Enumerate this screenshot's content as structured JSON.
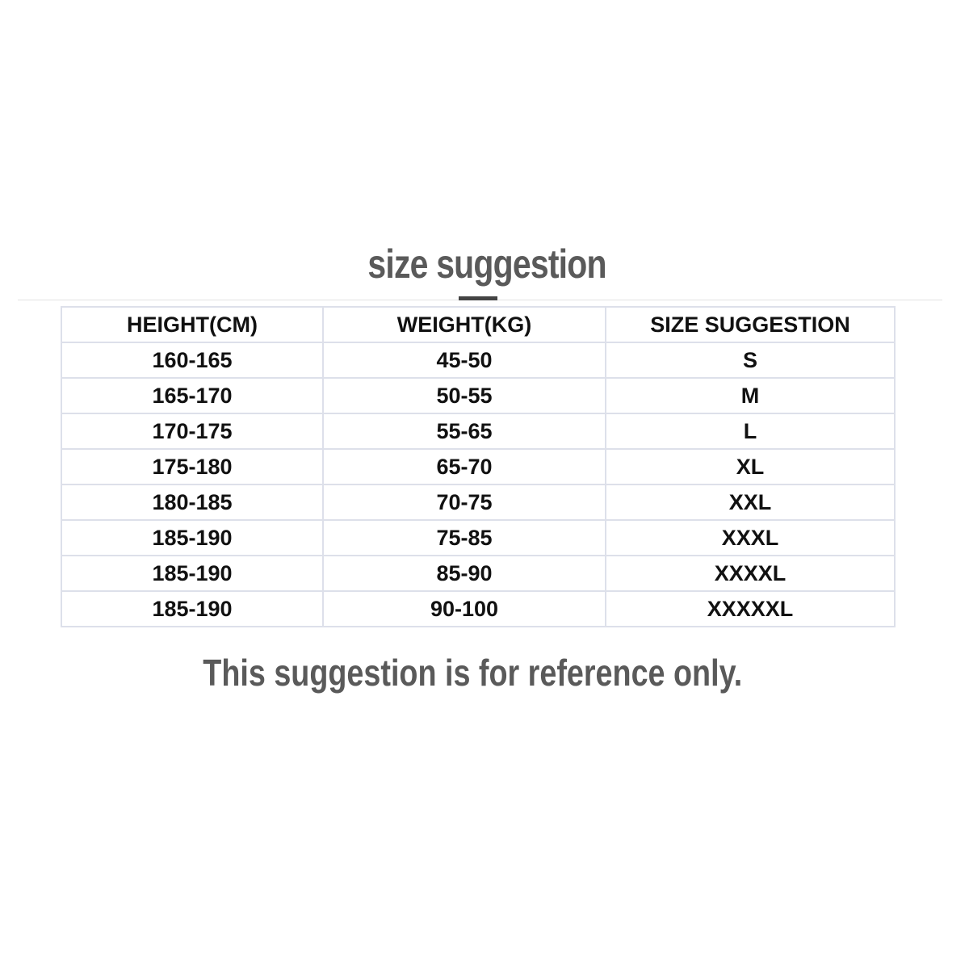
{
  "title": "size suggestion",
  "headers": [
    "HEIGHT(CM)",
    "WEIGHT(KG)",
    "SIZE SUGGESTION"
  ],
  "rows": [
    [
      "160-165",
      "45-50",
      "S"
    ],
    [
      "165-170",
      "50-55",
      "M"
    ],
    [
      "170-175",
      "55-65",
      "L"
    ],
    [
      "175-180",
      "65-70",
      "XL"
    ],
    [
      "180-185",
      "70-75",
      "XXL"
    ],
    [
      "185-190",
      "75-85",
      "XXXL"
    ],
    [
      "185-190",
      "85-90",
      "XXXXL"
    ],
    [
      "185-190",
      "90-100",
      "XXXXXL"
    ]
  ],
  "footer": "This suggestion is for reference only."
}
